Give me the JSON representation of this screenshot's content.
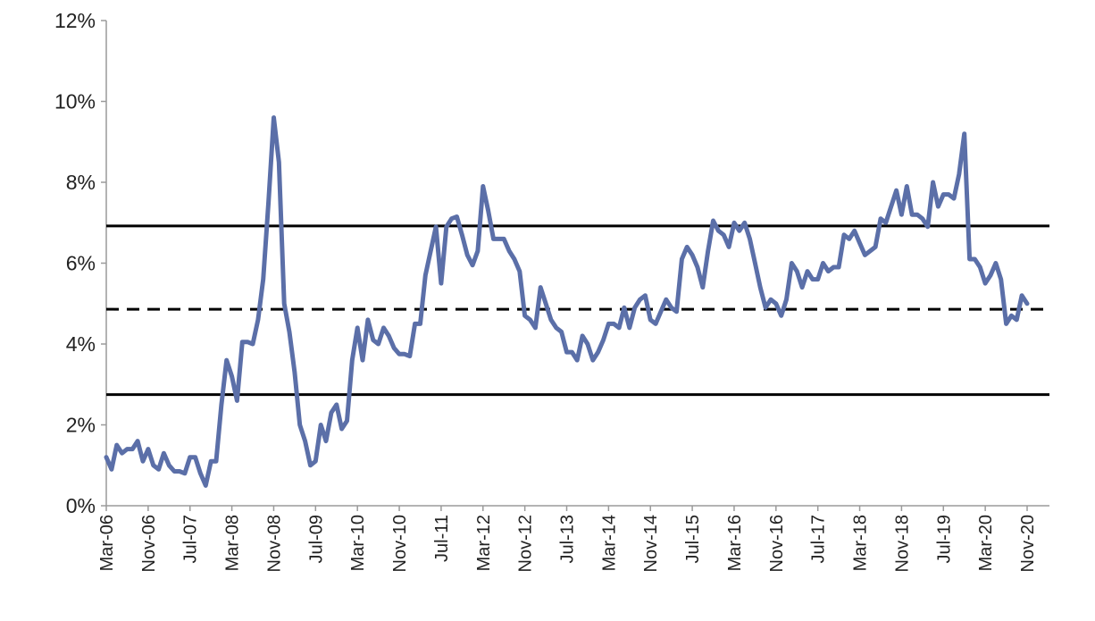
{
  "chart_data": {
    "type": "line",
    "title": "",
    "xlabel": "",
    "ylabel": "",
    "ylim": [
      0,
      12
    ],
    "y_ticks": [
      "0%",
      "2%",
      "4%",
      "6%",
      "8%",
      "10%",
      "12%"
    ],
    "x_ticks": [
      "Mar-06",
      "Nov-06",
      "Jul-07",
      "Mar-08",
      "Nov-08",
      "Jul-09",
      "Mar-10",
      "Nov-10",
      "Jul-11",
      "Mar-12",
      "Nov-12",
      "Jul-13",
      "Mar-14",
      "Nov-14",
      "Jul-15",
      "Mar-16",
      "Nov-16",
      "Jul-17",
      "Mar-18",
      "Nov-18",
      "Jul-19",
      "Mar-20",
      "Nov-20"
    ],
    "grid": false,
    "legend": "none",
    "x_start": "Mar-06",
    "x_frequency": "monthly",
    "series": [
      {
        "color": "#5b6fa8",
        "values": [
          1.2,
          0.9,
          1.5,
          1.3,
          1.4,
          1.4,
          1.6,
          1.1,
          1.4,
          1.0,
          0.9,
          1.3,
          1.0,
          0.85,
          0.85,
          0.8,
          1.2,
          1.2,
          0.8,
          0.5,
          1.1,
          1.1,
          2.5,
          3.6,
          3.2,
          2.6,
          4.05,
          4.05,
          4.0,
          4.6,
          5.6,
          7.5,
          9.6,
          8.5,
          5.0,
          4.3,
          3.3,
          2.0,
          1.6,
          1.0,
          1.1,
          2.0,
          1.6,
          2.3,
          2.5,
          1.9,
          2.1,
          3.6,
          4.4,
          3.6,
          4.6,
          4.1,
          4.0,
          4.4,
          4.2,
          3.9,
          3.75,
          3.75,
          3.7,
          4.5,
          4.5,
          5.7,
          6.3,
          6.9,
          5.5,
          6.9,
          7.1,
          7.15,
          6.7,
          6.2,
          5.95,
          6.3,
          7.9,
          7.3,
          6.6,
          6.6,
          6.6,
          6.3,
          6.1,
          5.8,
          4.7,
          4.6,
          4.4,
          5.4,
          5.0,
          4.6,
          4.4,
          4.3,
          3.8,
          3.8,
          3.6,
          4.2,
          4.0,
          3.6,
          3.8,
          4.1,
          4.5,
          4.5,
          4.4,
          4.9,
          4.4,
          4.9,
          5.1,
          5.2,
          4.6,
          4.5,
          4.8,
          5.1,
          4.9,
          4.8,
          6.1,
          6.4,
          6.2,
          5.9,
          5.4,
          6.3,
          7.05,
          6.8,
          6.7,
          6.4,
          7.0,
          6.8,
          7.0,
          6.6,
          6.0,
          5.4,
          4.9,
          5.1,
          5.0,
          4.7,
          5.1,
          6.0,
          5.8,
          5.4,
          5.8,
          5.6,
          5.6,
          6.0,
          5.8,
          5.9,
          5.9,
          6.7,
          6.6,
          6.8,
          6.5,
          6.2,
          6.3,
          6.4,
          7.1,
          7.0,
          7.4,
          7.8,
          7.2,
          7.9,
          7.2,
          7.2,
          7.1,
          6.9,
          8.0,
          7.4,
          7.7,
          7.7,
          7.6,
          8.2,
          9.2,
          6.1,
          6.1,
          5.9,
          5.5,
          5.7,
          6.0,
          5.6,
          4.5,
          4.7,
          4.6,
          5.2,
          5.0
        ]
      }
    ],
    "reference_lines": [
      {
        "value": 6.92,
        "style": "solid",
        "color": "#000000"
      },
      {
        "value": 4.86,
        "style": "dashed",
        "color": "#000000"
      },
      {
        "value": 2.75,
        "style": "solid",
        "color": "#000000"
      }
    ]
  }
}
